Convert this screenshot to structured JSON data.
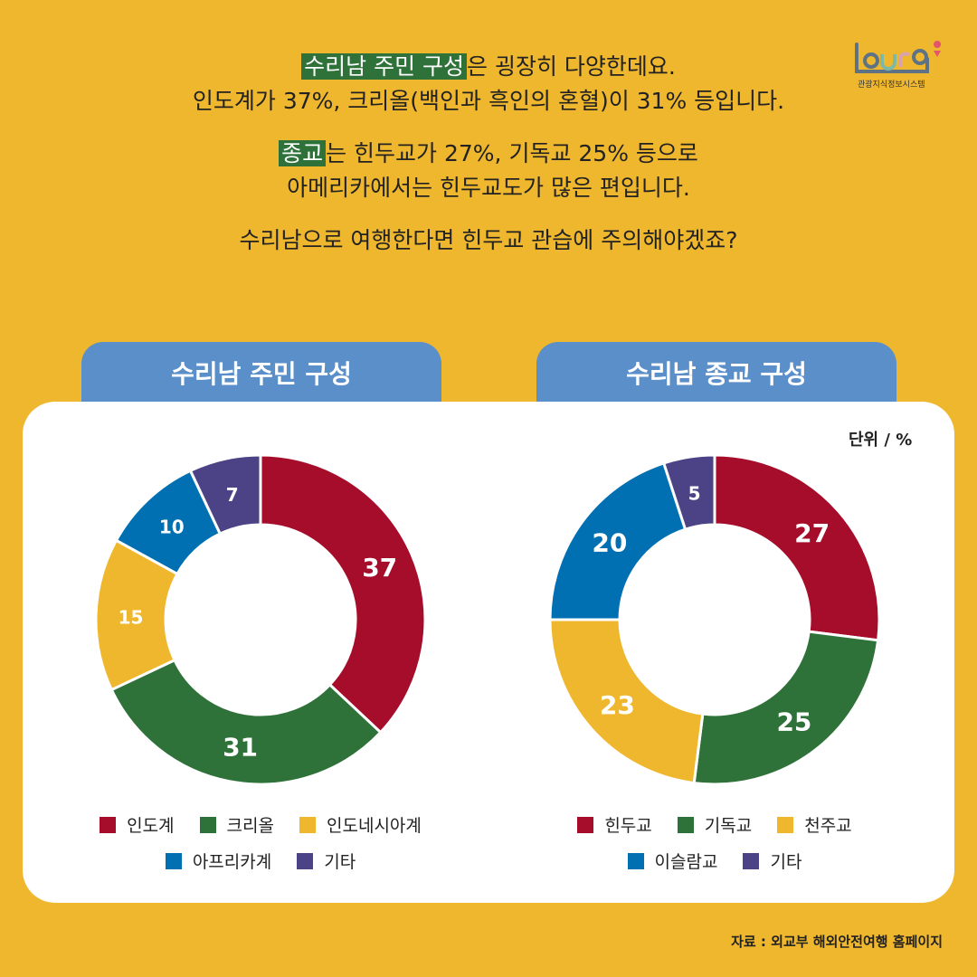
{
  "intro": {
    "p1": {
      "highlight": "수리남 주민 구성",
      "rest": "은 굉장히 다양한데요.",
      "line2": "인도계가 37%, 크리올(백인과 흑인의 혼혈)이 31% 등입니다."
    },
    "p2": {
      "highlight": "종교",
      "rest": "는 힌두교가 27%, 기독교 25% 등으로",
      "line2": "아메리카에서는 힌두교도가 많은 편입니다."
    },
    "p3": "수리남으로 여행한다면 힌두교 관습에 주의해야겠죠?"
  },
  "logo": {
    "text": "tour9",
    "subtitle": "관광지식정보시스템"
  },
  "unit": "단위 / %",
  "source": "자료 :  외교부 해외안전여행 홈페이지",
  "chart_data": [
    {
      "type": "pie",
      "donut": true,
      "title": "수리남 주민 구성",
      "categories": [
        "인도계",
        "크리올",
        "인도네시아계",
        "아프리카계",
        "기타"
      ],
      "values": [
        37,
        31,
        15,
        10,
        7
      ],
      "colors": [
        "#A50D2B",
        "#2E7239",
        "#EFB72E",
        "#0070B3",
        "#4B4385"
      ],
      "legend": "bottom"
    },
    {
      "type": "pie",
      "donut": true,
      "title": "수리남 종교 구성",
      "categories": [
        "힌두교",
        "기독교",
        "천주교",
        "이슬람교",
        "기타"
      ],
      "values": [
        27,
        25,
        23,
        20,
        5
      ],
      "colors": [
        "#A50D2B",
        "#2E7239",
        "#EFB72E",
        "#0070B3",
        "#4B4385"
      ],
      "legend": "bottom"
    }
  ]
}
